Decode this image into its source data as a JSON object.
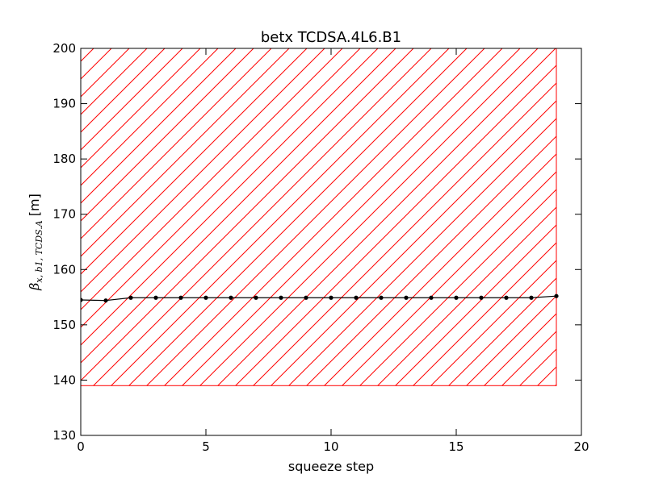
{
  "chart_data": {
    "type": "line",
    "title": "betx TCDSA.4L6.B1",
    "xlabel": "squeeze step",
    "ylabel": {
      "symbol": "β",
      "sub": "x, b1, TCDS.A",
      "unit": " [m]"
    },
    "xlim": [
      0,
      20
    ],
    "ylim": [
      130,
      200
    ],
    "xticks": [
      0,
      5,
      10,
      15,
      20
    ],
    "yticks": [
      130,
      140,
      150,
      160,
      170,
      180,
      190,
      200
    ],
    "grid": false,
    "series": [
      {
        "color": "#000000",
        "marker": "dot",
        "x": [
          0,
          1,
          2,
          3,
          4,
          5,
          6,
          7,
          8,
          9,
          10,
          11,
          12,
          13,
          14,
          15,
          16,
          17,
          18,
          19
        ],
        "y": [
          154.5,
          154.4,
          154.9,
          154.9,
          154.9,
          154.9,
          154.9,
          154.9,
          154.9,
          154.9,
          154.9,
          154.9,
          154.9,
          154.9,
          154.9,
          154.9,
          154.9,
          154.9,
          154.9,
          155.2
        ]
      }
    ],
    "shaded_region": {
      "x": [
        0,
        19
      ],
      "y": [
        139,
        200
      ],
      "edge_color": "#ff0000",
      "pattern": "diagonal-hatch"
    }
  }
}
